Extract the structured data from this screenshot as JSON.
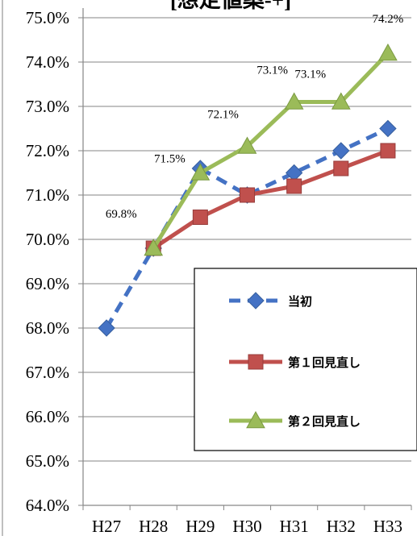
{
  "chart_data": {
    "type": "line",
    "title": "[想定値案-+]",
    "xlabel": "",
    "ylabel": "",
    "categories": [
      "H27",
      "H28",
      "H29",
      "H30",
      "H31",
      "H32",
      "H33"
    ],
    "ylim": [
      64.0,
      75.0
    ],
    "y_ticks": [
      "64.0%",
      "65.0%",
      "66.0%",
      "67.0%",
      "68.0%",
      "69.0%",
      "70.0%",
      "71.0%",
      "72.0%",
      "73.0%",
      "74.0%",
      "75.0%"
    ],
    "grid": true,
    "legend_position": "bottom-right",
    "series": [
      {
        "name": "当初",
        "values": [
          68.0,
          69.8,
          71.6,
          71.0,
          71.5,
          72.0,
          72.5
        ],
        "color": "#4472c4",
        "marker": "diamond",
        "line": "dashed"
      },
      {
        "name": "第１回見直し",
        "values": [
          null,
          69.8,
          70.5,
          71.0,
          71.2,
          71.6,
          72.0
        ],
        "color": "#c0504d",
        "marker": "square",
        "line": "solid"
      },
      {
        "name": "第２回見直し",
        "values": [
          null,
          69.8,
          71.5,
          72.1,
          73.1,
          73.1,
          74.2
        ],
        "color": "#9bbb59",
        "marker": "triangle",
        "line": "solid"
      }
    ],
    "data_labels": [
      {
        "category": "H28",
        "value": 69.8,
        "text": "69.8%"
      },
      {
        "category": "H29",
        "value": 71.5,
        "text": "71.5%"
      },
      {
        "category": "H30",
        "value": 72.1,
        "text": "72.1%"
      },
      {
        "category": "H31",
        "value": 73.1,
        "text": "73.1%"
      },
      {
        "category": "H32",
        "value": 73.1,
        "text": "73.1%"
      },
      {
        "category": "H33",
        "value": 74.2,
        "text": "74.2%"
      }
    ]
  }
}
